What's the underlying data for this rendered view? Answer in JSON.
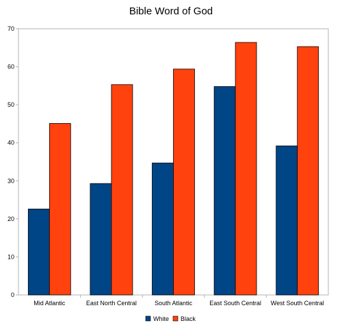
{
  "chart_data": {
    "type": "bar",
    "title": "Bible Word of God",
    "xlabel": "",
    "ylabel": "",
    "categories": [
      "Mid Atlantic",
      "East North Central",
      "South Atlantic",
      "East South Central",
      "West South Central"
    ],
    "series": [
      {
        "name": "White",
        "color": "#004586",
        "values": [
          22.6,
          29.3,
          34.7,
          54.8,
          39.2
        ]
      },
      {
        "name": "Black",
        "color": "#ff420e",
        "values": [
          45.1,
          55.3,
          59.4,
          66.4,
          65.3
        ]
      }
    ],
    "ylim": [
      0,
      70
    ],
    "yticks": [
      0,
      10,
      20,
      30,
      40,
      50,
      60,
      70
    ],
    "grid": false,
    "legend": "bottom"
  }
}
